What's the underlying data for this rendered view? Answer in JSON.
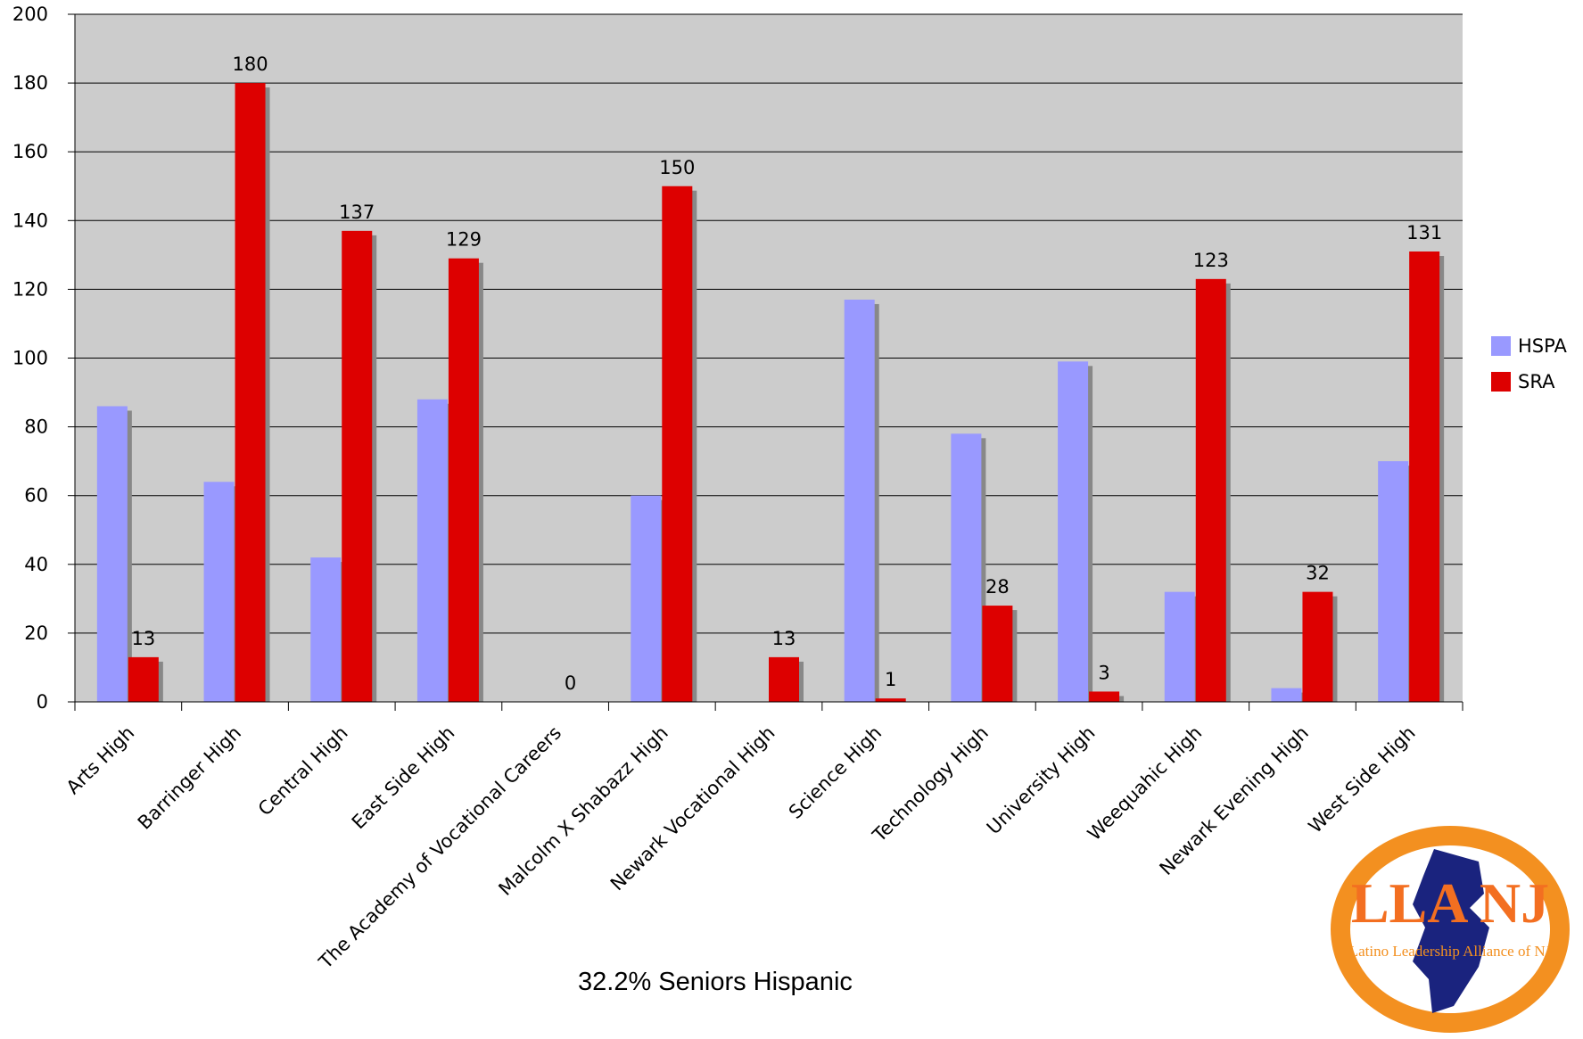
{
  "chart_data": {
    "type": "bar",
    "categories": [
      "Arts High",
      "Barringer High",
      "Central High",
      "East Side High",
      "The Academy of Vocational Careers",
      "Malcolm X Shabazz High",
      "Newark Vocational High",
      "Science High",
      "Technology High",
      "University High",
      "Weequahic High",
      "Newark Evening High",
      "West Side High"
    ],
    "series": [
      {
        "name": "HSPA",
        "color": "#9999ff",
        "values": [
          86,
          64,
          42,
          88,
          0,
          60,
          0,
          117,
          78,
          99,
          32,
          4,
          70
        ]
      },
      {
        "name": "SRA",
        "color": "#dd0000",
        "values": [
          13,
          180,
          137,
          129,
          0,
          150,
          13,
          1,
          28,
          3,
          123,
          32,
          131
        ]
      }
    ],
    "data_labels": [
      "13",
      "180",
      "137",
      "129",
      "0",
      "150",
      "13",
      "1",
      "28",
      "3",
      "123",
      "32",
      "131"
    ],
    "ylim": [
      0,
      200
    ],
    "yticks": [
      "0",
      "20",
      "40",
      "60",
      "80",
      "100",
      "120",
      "140",
      "160",
      "180",
      "200"
    ],
    "grid": true,
    "legend_position": "right",
    "plot_background": "#cccccc",
    "subtitle": "32.2% Seniors Hispanic"
  },
  "legend": {
    "items": [
      {
        "label": "HSPA",
        "color": "#9999ff"
      },
      {
        "label": "SRA",
        "color": "#dd0000"
      }
    ]
  },
  "logo": {
    "text": "LLA NJ",
    "subtext": "Latino Leadership Alliance of NJ"
  }
}
